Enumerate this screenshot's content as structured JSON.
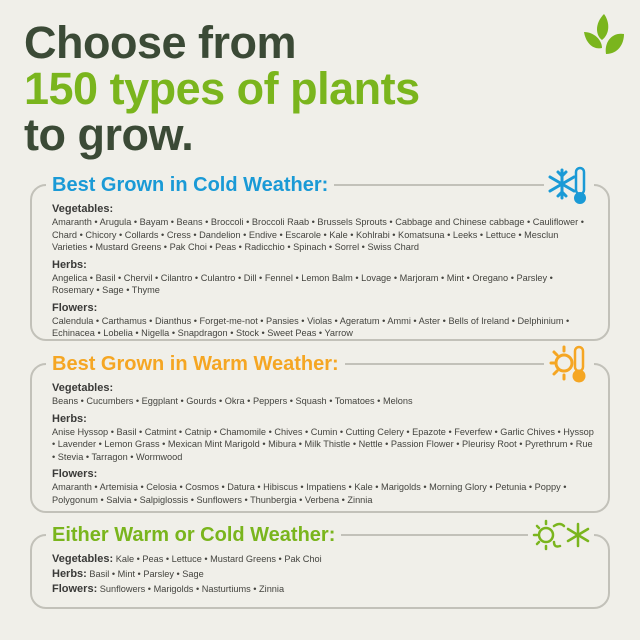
{
  "header": {
    "line1": "Choose from",
    "line2": "150 types of plants",
    "line3": "to grow."
  },
  "colors": {
    "dark_green": "#3b4a36",
    "green": "#7ab51d",
    "blue": "#1a9ad6",
    "orange": "#f5a623"
  },
  "cold": {
    "title": "Best Grown in Cold Weather:",
    "icon": "snowflake-thermometer-icon",
    "categories": [
      {
        "label": "Vegetables:",
        "text": "Amaranth • Arugula • Bayam • Beans • Broccoli • Broccoli Raab • Brussels Sprouts • Cabbage and Chinese cabbage • Cauliflower • Chard • Chicory • Collards • Cress • Dandelion • Endive • Escarole • Kale • Kohlrabi • Komatsuna • Leeks • Lettuce • Mesclun Varieties • Mustard Greens • Pak Choi • Peas • Radicchio • Spinach • Sorrel • Swiss Chard"
      },
      {
        "label": "Herbs:",
        "text": "Angelica • Basil • Chervil • Cilantro • Culantro • Dill • Fennel • Lemon Balm • Lovage • Marjoram • Mint • Oregano • Parsley • Rosemary • Sage • Thyme"
      },
      {
        "label": "Flowers:",
        "text": "Calendula • Carthamus • Dianthus • Forget-me-not • Pansies • Violas • Ageratum • Ammi • Aster • Bells of Ireland • Delphinium • Echinacea • Lobelia • Nigella • Snapdragon • Stock • Sweet Peas • Yarrow"
      }
    ]
  },
  "warm": {
    "title": "Best Grown in Warm Weather:",
    "icon": "sun-thermometer-icon",
    "categories": [
      {
        "label": "Vegetables:",
        "text": "Beans • Cucumbers • Eggplant • Gourds • Okra • Peppers • Squash • Tomatoes • Melons"
      },
      {
        "label": "Herbs:",
        "text": "Anise Hyssop • Basil • Catmint • Catnip • Chamomile • Chives • Cumin • Cutting Celery • Epazote • Feverfew • Garlic Chives • Hyssop • Lavender • Lemon Grass • Mexican Mint Marigold • Mibura • Milk Thistle • Nettle • Passion Flower • Pleurisy Root • Pyrethrum • Rue • Stevia • Tarragon • Wormwood"
      },
      {
        "label": "Flowers:",
        "text": "Amaranth • Artemisia • Celosia • Cosmos • Datura • Hibiscus • Impatiens • Kale • Marigolds • Morning Glory • Petunia • Poppy • Polygonum • Salvia • Salpiglossis • Sunflowers • Thunbergia • Verbena • Zinnia"
      }
    ]
  },
  "either": {
    "title": "Either Warm or Cold Weather:",
    "icon": "sun-snowflake-cycle-icon",
    "categories": [
      {
        "label": "Vegetables:",
        "text": "Kale • Peas • Lettuce • Mustard Greens • Pak Choi"
      },
      {
        "label": "Herbs:",
        "text": "Basil • Mint • Parsley • Sage"
      },
      {
        "label": "Flowers:",
        "text": "Sunflowers • Marigolds • Nasturtiums • Zinnia"
      }
    ]
  }
}
